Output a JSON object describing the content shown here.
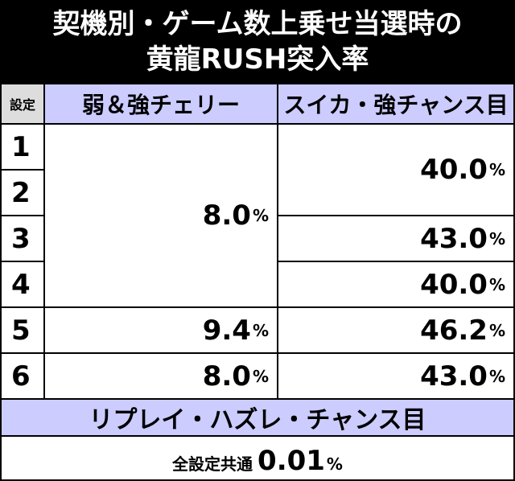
{
  "header": {
    "title_lines": [
      "契機別・ゲーム数上乗せ当選時の",
      "黄龍RUSH突入率"
    ]
  },
  "table": {
    "columns": [
      "設定",
      "弱＆強チェリー",
      "スイカ・強チャンス目"
    ],
    "settings": [
      "1",
      "2",
      "3",
      "4",
      "5",
      "6"
    ],
    "cherry": [
      {
        "number": "8.0",
        "unit": "%"
      },
      {
        "number": "9.4",
        "unit": "%"
      },
      {
        "number": "8.0",
        "unit": "%"
      }
    ],
    "suika": [
      {
        "number": "40.0",
        "unit": "%"
      },
      {
        "number": "43.0",
        "unit": "%"
      },
      {
        "number": "40.0",
        "unit": "%"
      },
      {
        "number": "46.2",
        "unit": "%"
      },
      {
        "number": "43.0",
        "unit": "%"
      }
    ]
  },
  "footer": {
    "title": "リプレイ・ハズレ・チャンス目",
    "label": "全設定共通",
    "number": "0.01",
    "unit": "%"
  }
}
